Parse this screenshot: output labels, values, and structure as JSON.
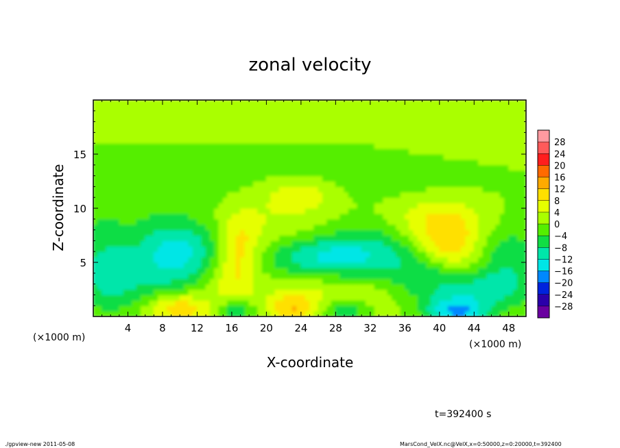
{
  "chart_data": {
    "type": "heatmap",
    "title": "zonal velocity",
    "xlabel": "X-coordinate",
    "ylabel": "Z-coordinate",
    "x_unit_left": "(×1000 m)",
    "x_unit_right": "(×1000 m)",
    "xlim": [
      0,
      50
    ],
    "ylim": [
      0,
      20
    ],
    "x_ticks": [
      4,
      8,
      12,
      16,
      20,
      24,
      28,
      32,
      36,
      40,
      44,
      48
    ],
    "y_ticks": [
      5,
      10,
      15
    ],
    "time_label": "t=392400 s",
    "colorbar": {
      "levels": [
        28,
        24,
        20,
        16,
        12,
        8,
        4,
        0,
        -4,
        -8,
        -12,
        -16,
        -20,
        -24,
        -28
      ],
      "labels": [
        "28",
        "24",
        "20",
        "16",
        "12",
        "8",
        "4",
        "0",
        "−4",
        "−8",
        "−12",
        "−16",
        "−20",
        "−24",
        "−28"
      ],
      "colors": [
        "#ff9aa0",
        "#ff5a5a",
        "#ff1e1e",
        "#ff6a00",
        "#ffaa00",
        "#ffe000",
        "#e6ff00",
        "#aaff00",
        "#55ee00",
        "#11dd44",
        "#00e6aa",
        "#00e6e6",
        "#0088ff",
        "#0022dd",
        "#2a00aa",
        "#6a00a0"
      ]
    },
    "base_value": 0,
    "features": [
      {
        "x": 10,
        "z": 6.5,
        "value": -11,
        "sx": 3.2,
        "sz": 1.8
      },
      {
        "x": 8,
        "z": 4,
        "value": -7,
        "sx": 4,
        "sz": 2
      },
      {
        "x": 26,
        "z": 5.5,
        "value": -11,
        "sx": 4.5,
        "sz": 1.3
      },
      {
        "x": 32,
        "z": 6,
        "value": -8,
        "sx": 4,
        "sz": 2
      },
      {
        "x": 2,
        "z": 3,
        "value": -6,
        "sx": 2.5,
        "sz": 2
      },
      {
        "x": 1,
        "z": 6,
        "value": -5,
        "sx": 2.5,
        "sz": 2.5
      },
      {
        "x": 42,
        "z": 0.5,
        "value": -16,
        "sx": 2.5,
        "sz": 0.9
      },
      {
        "x": 44,
        "z": 2.5,
        "value": -8,
        "sx": 4,
        "sz": 1.2
      },
      {
        "x": 16.5,
        "z": 0.6,
        "value": -10,
        "sx": 1.5,
        "sz": 0.8
      },
      {
        "x": 29,
        "z": 0.6,
        "value": -9,
        "sx": 2,
        "sz": 0.8
      },
      {
        "x": 48,
        "z": 5,
        "value": -7,
        "sx": 2.5,
        "sz": 2.5
      },
      {
        "x": 38,
        "z": 4,
        "value": -6,
        "sx": 2.5,
        "sz": 1.5
      },
      {
        "x": 30,
        "z": 14,
        "value": -4,
        "sx": 10,
        "sz": 2
      },
      {
        "x": 8,
        "z": 12,
        "value": -3,
        "sx": 8,
        "sz": 3
      },
      {
        "x": 10,
        "z": 0.8,
        "value": 12,
        "sx": 2.5,
        "sz": 1
      },
      {
        "x": 23,
        "z": 0.8,
        "value": 10,
        "sx": 2,
        "sz": 1
      },
      {
        "x": 16,
        "z": 3,
        "value": 7,
        "sx": 2,
        "sz": 2
      },
      {
        "x": 17,
        "z": 6.5,
        "value": 8,
        "sx": 1.5,
        "sz": 2
      },
      {
        "x": 41,
        "z": 6.5,
        "value": 10,
        "sx": 2.5,
        "sz": 1.5
      },
      {
        "x": 40,
        "z": 9,
        "value": 8,
        "sx": 4,
        "sz": 1.5
      },
      {
        "x": 24,
        "z": 11.5,
        "value": 6,
        "sx": 3,
        "sz": 1.2
      },
      {
        "x": 28,
        "z": 2,
        "value": 5,
        "sx": 5,
        "sz": 1.5
      },
      {
        "x": 20,
        "z": 9,
        "value": 4,
        "sx": 6,
        "sz": 2.5
      },
      {
        "x": 12,
        "z": 18.5,
        "value": 4,
        "sx": 10,
        "sz": 2
      },
      {
        "x": 40,
        "z": 17,
        "value": 4,
        "sx": 10,
        "sz": 2
      }
    ]
  },
  "footer": {
    "left": "./gpview-new   2011-05-08",
    "right": "MarsCond_VelX.nc@VelX,x=0:50000,z=0:20000,t=392400"
  }
}
